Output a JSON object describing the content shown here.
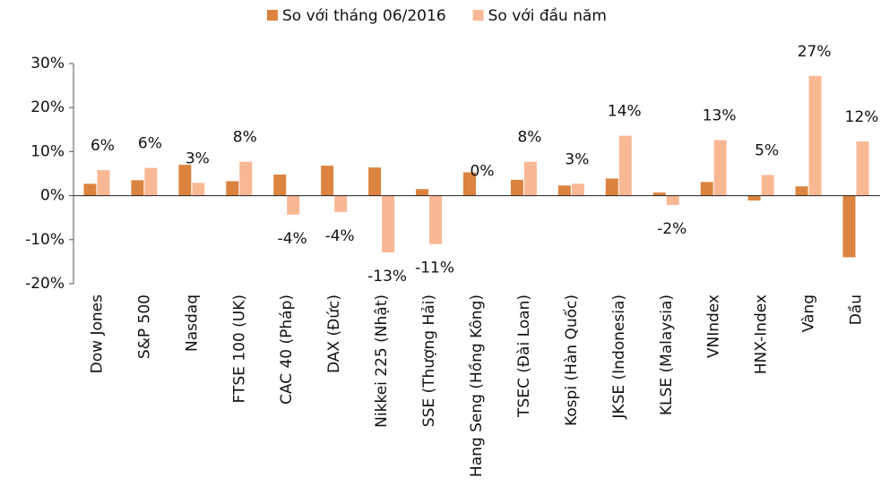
{
  "chart_data": {
    "type": "bar",
    "categories": [
      "Dow Jones",
      "S&P 500",
      "Nasdaq",
      "FTSE 100 (UK)",
      "CAC 40 (Pháp)",
      "DAX (Đức)",
      "Nikkei 225 (Nhật)",
      "SSE (Thượng Hải)",
      "Hang Seng (Hồng Kông)",
      "TSEC (Đài Loan)",
      "Kospi (Hàn Quốc)",
      "JKSE (Indonesia)",
      "KLSE (Malaysia)",
      "VNIndex",
      "HNX-Index",
      "Vàng",
      "Dầu"
    ],
    "series": [
      {
        "name": "So với tháng 06/2016",
        "color": "#dc843f",
        "values": [
          2.7,
          3.5,
          7.0,
          3.3,
          4.8,
          6.8,
          6.4,
          1.5,
          5.3,
          3.6,
          2.3,
          3.9,
          0.7,
          3.1,
          -1.1,
          2.1,
          -14.0
        ]
      },
      {
        "name": "So với đầu năm",
        "color": "#f9b894",
        "values": [
          5.8,
          6.3,
          2.9,
          7.7,
          -4.3,
          -3.7,
          -12.9,
          -11.0,
          0,
          7.7,
          2.7,
          13.6,
          -2.1,
          12.6,
          4.7,
          27.2,
          12.3
        ],
        "value_labels": [
          "6%",
          "6%",
          "3%",
          "8%",
          "-4%",
          "-4%",
          "-13%",
          "-11%",
          "0%",
          "8%",
          "3%",
          "14%",
          "-2%",
          "13%",
          "5%",
          "27%",
          "12%"
        ]
      }
    ],
    "ylim": [
      -20,
      30
    ],
    "yticks": [
      {
        "value": -20,
        "label": "-20%"
      },
      {
        "value": -10,
        "label": "-10%"
      },
      {
        "value": 0,
        "label": "0%"
      },
      {
        "value": 10,
        "label": "10%"
      },
      {
        "value": 20,
        "label": "20%"
      },
      {
        "value": 30,
        "label": "30%"
      }
    ],
    "legend": "top"
  }
}
